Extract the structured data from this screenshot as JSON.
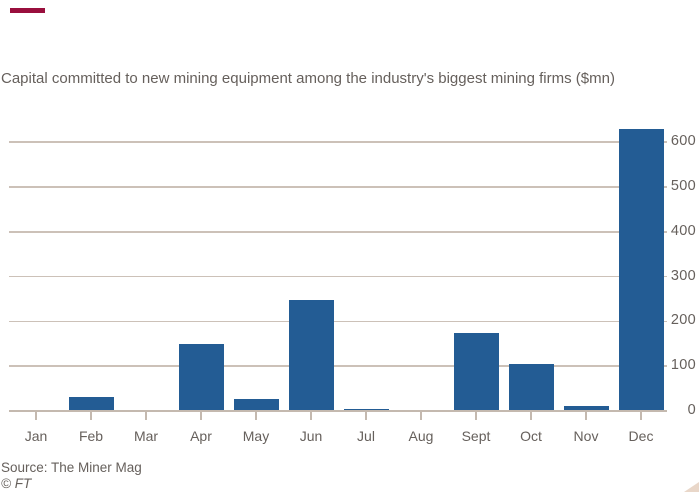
{
  "brand": {
    "accent_color": "#990F3D",
    "triangle_color": "#E9D7C9",
    "text_color": "#66605C",
    "background_color": "#FFFFFF"
  },
  "header": {
    "title": "Capital committed to new mining equipment among the industry's biggest mining firms ($mn)"
  },
  "footer": {
    "source": "Source: The Miner Mag",
    "credit": "© FT"
  },
  "chart_data": {
    "type": "bar",
    "title": "Capital committed to new mining equipment among the industry's biggest mining firms ($mn)",
    "categories": [
      "Jan",
      "Feb",
      "Mar",
      "Apr",
      "May",
      "Jun",
      "Jul",
      "Aug",
      "Sept",
      "Oct",
      "Nov",
      "Dec"
    ],
    "values": [
      0,
      32,
      0,
      150,
      27,
      248,
      5,
      0,
      174,
      105,
      11,
      630
    ],
    "xlabel": "",
    "ylabel": "",
    "ylim": [
      0,
      640
    ],
    "yticks": [
      0,
      100,
      200,
      300,
      400,
      500,
      600
    ],
    "y_axis_side": "right",
    "grid": "horizontal",
    "legend_position": "none",
    "bar_color": "#235C94",
    "gridline_color": "#CCC1B8",
    "axis_color": "#C4B9AF",
    "tick_color": "#C4B9AF"
  }
}
